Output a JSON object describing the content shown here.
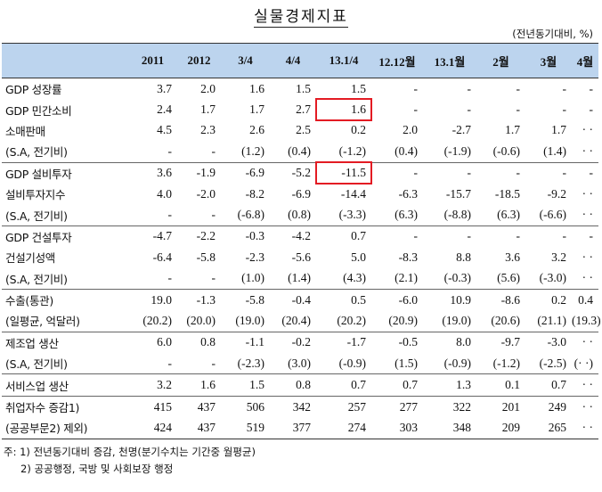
{
  "title": "실물경제지표",
  "unit": "(전년동기대비, %)",
  "columns": [
    "",
    "2011",
    "2012",
    "3/4",
    "4/4",
    "13.1/4",
    "12.12월",
    "13.1월",
    "2월",
    "3월",
    "4월"
  ],
  "rows": [
    {
      "label": "GDP 성장률",
      "values": [
        "3.7",
        "2.0",
        "1.6",
        "1.5",
        "1.5",
        "-",
        "-",
        "-",
        "-",
        "-"
      ]
    },
    {
      "label": "GDP 민간소비",
      "values": [
        "2.4",
        "1.7",
        "1.7",
        "2.7",
        "1.6",
        "-",
        "-",
        "-",
        "-",
        "-"
      ]
    },
    {
      "label": "소매판매",
      "values": [
        "4.5",
        "2.3",
        "2.6",
        "2.5",
        "0.2",
        "2.0",
        "-2.7",
        "1.7",
        "1.7",
        "· ·"
      ]
    },
    {
      "label": "(S.A, 전기비)",
      "values": [
        "-",
        "-",
        "(1.2)",
        "(0.4)",
        "(-1.2)",
        "(0.4)",
        "(-1.9)",
        "(-0.6)",
        "(1.4)",
        "· ·"
      ]
    },
    {
      "label": "GDP 설비투자",
      "values": [
        "3.6",
        "-1.9",
        "-6.9",
        "-5.2",
        "-11.5",
        "-",
        "-",
        "-",
        "-",
        "-"
      ]
    },
    {
      "label": "설비투자지수",
      "values": [
        "4.0",
        "-2.0",
        "-8.2",
        "-6.9",
        "-14.4",
        "-6.3",
        "-15.7",
        "-18.5",
        "-9.2",
        "· ·"
      ]
    },
    {
      "label": "(S.A, 전기비)",
      "values": [
        "-",
        "-",
        "(-6.8)",
        "(0.8)",
        "(-3.3)",
        "(6.3)",
        "(-8.8)",
        "(6.3)",
        "(-6.6)",
        "· ·"
      ]
    },
    {
      "label": "GDP 건설투자",
      "values": [
        "-4.7",
        "-2.2",
        "-0.3",
        "-4.2",
        "0.7",
        "-",
        "-",
        "-",
        "-",
        "-"
      ]
    },
    {
      "label": "건설기성액",
      "values": [
        "-6.4",
        "-5.8",
        "-2.3",
        "-5.6",
        "5.0",
        "-8.3",
        "8.8",
        "3.6",
        "3.2",
        "· ·"
      ]
    },
    {
      "label": "(S.A, 전기비)",
      "values": [
        "-",
        "-",
        "(1.0)",
        "(1.4)",
        "(4.3)",
        "(2.1)",
        "(-0.3)",
        "(5.6)",
        "(-3.0)",
        "· ·"
      ]
    },
    {
      "label": "수출(통관)",
      "values": [
        "19.0",
        "-1.3",
        "-5.8",
        "-0.4",
        "0.5",
        "-6.0",
        "10.9",
        "-8.6",
        "0.2",
        "0.4"
      ]
    },
    {
      "label": "(일평균, 억달러)",
      "values": [
        "(20.2)",
        "(20.0)",
        "(19.0)",
        "(20.4)",
        "(20.2)",
        "(20.9)",
        "(19.0)",
        "(20.6)",
        "(21.1)",
        "(19.3)"
      ]
    },
    {
      "label": "제조업 생산",
      "values": [
        "6.0",
        "0.8",
        "-1.1",
        "-0.2",
        "-1.7",
        "-0.5",
        "8.0",
        "-9.7",
        "-3.0",
        "· ·"
      ]
    },
    {
      "label": "(S.A, 전기비)",
      "values": [
        "-",
        "-",
        "(-2.3)",
        "(3.0)",
        "(-0.9)",
        "(1.5)",
        "(-0.9)",
        "(-1.2)",
        "(-2.5)",
        "(· ·)"
      ]
    },
    {
      "label": "서비스업 생산",
      "values": [
        "3.2",
        "1.6",
        "1.5",
        "0.8",
        "0.7",
        "0.7",
        "1.3",
        "0.1",
        "0.7",
        "· ·"
      ]
    },
    {
      "label": "취업자수 증감1)",
      "values": [
        "415",
        "437",
        "506",
        "342",
        "257",
        "277",
        "322",
        "201",
        "249",
        "· ·"
      ]
    },
    {
      "label": "(공공부문2) 제외)",
      "values": [
        "424",
        "437",
        "519",
        "377",
        "274",
        "303",
        "348",
        "209",
        "265",
        "· ·"
      ]
    }
  ],
  "highlight_color": "#e31b23",
  "notes": [
    "주: 1) 전년동기대비 증감, 천명(분기수치는 기간중 월평균)",
    "2) 공공행정, 국방 및 사회보장 행정"
  ]
}
